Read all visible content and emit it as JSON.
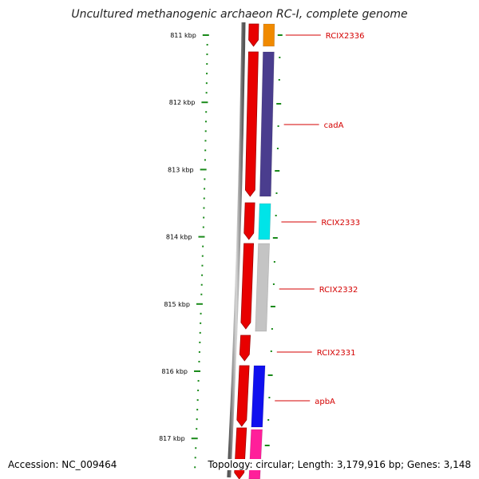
{
  "title": "Uncultured methanogenic archaeon RC-I, complete genome",
  "accession": "Accession: NC_009464",
  "summary": "Topology: circular; Length: 3,179,916 bp; Genes: 3,148",
  "colors": {
    "backbone": "#8a8a8a",
    "ticks": "#1a8a1a",
    "feature_label": "#d40000",
    "cds_strand": "#e80000"
  },
  "scale": {
    "labels": [
      "811 kbp",
      "812 kbp",
      "813 kbp",
      "814 kbp",
      "815 kbp",
      "816 kbp",
      "817 kbp"
    ]
  },
  "genes": [
    {
      "label": "RCIX2336",
      "color": "#f08a00"
    },
    {
      "label": "cadA",
      "color": "#4a3d8e"
    },
    {
      "label": "RCIX2333",
      "color": "#00e4e8"
    },
    {
      "label": "RCIX2332",
      "color": "#c4c4c4"
    },
    {
      "label": "RCIX2331",
      "color": ""
    },
    {
      "label": "apbA",
      "color": "#1010ee"
    },
    {
      "label": "",
      "color": "#ff1f9a"
    }
  ]
}
